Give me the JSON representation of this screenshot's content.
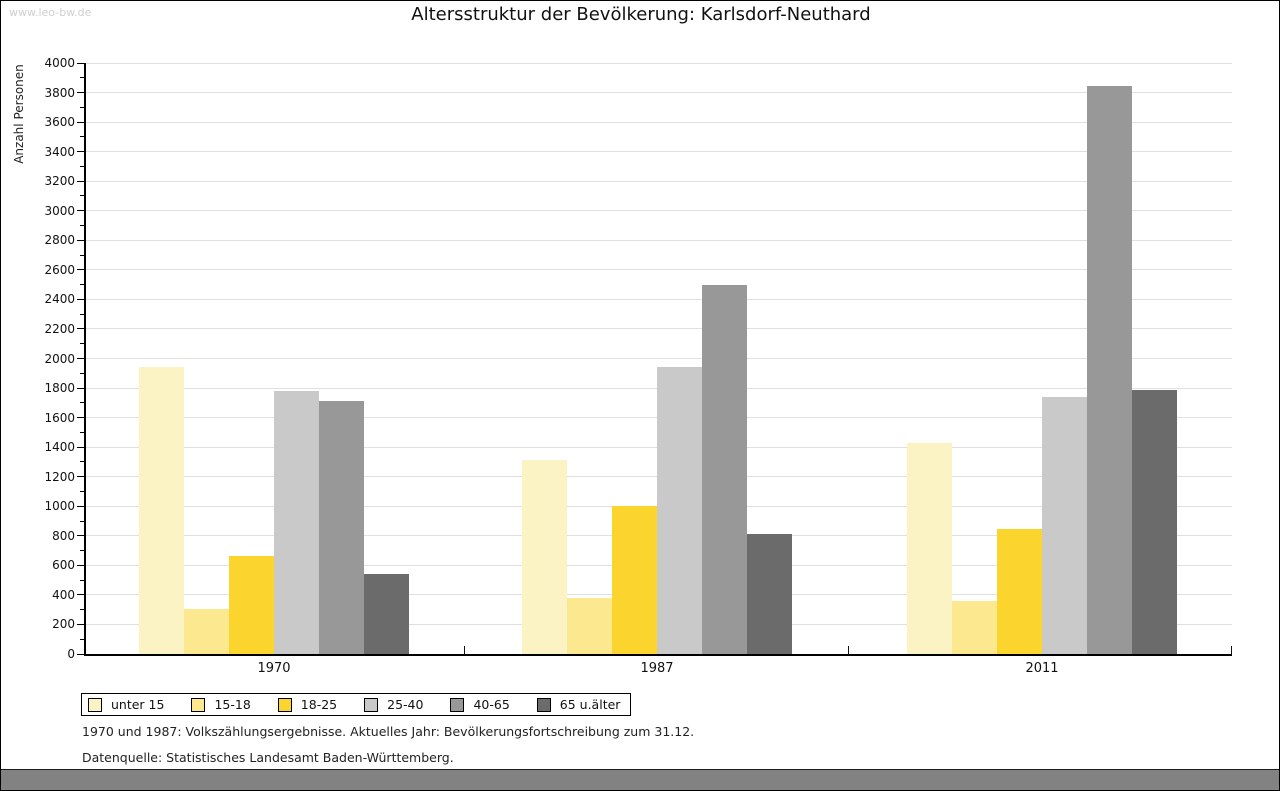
{
  "page": {
    "watermark": "www.leo-bw.de",
    "title": "Altersstruktur der Bevölkerung: Karlsdorf-Neuthard"
  },
  "chart_data": {
    "type": "bar",
    "title": "Altersstruktur der Bevölkerung: Karlsdorf-Neuthard",
    "ylabel": "Anzahl Personen",
    "xlabel": "",
    "ylim": [
      0,
      4000
    ],
    "ytick_step": 200,
    "grid": true,
    "legend_position": "bottom-left",
    "categories": [
      "1970",
      "1987",
      "2011"
    ],
    "series": [
      {
        "name": "unter 15",
        "color": "#FCF3C5",
        "values": [
          1945,
          1315,
          1430
        ]
      },
      {
        "name": "15-18",
        "color": "#FCE98F",
        "values": [
          305,
          380,
          360
        ]
      },
      {
        "name": "18-25",
        "color": "#FCD42E",
        "values": [
          665,
          1005,
          845
        ]
      },
      {
        "name": "25-40",
        "color": "#C9C9C9",
        "values": [
          1780,
          1940,
          1740
        ]
      },
      {
        "name": "40-65",
        "color": "#989898",
        "values": [
          1710,
          2500,
          3845
        ]
      },
      {
        "name": "65 u.älter",
        "color": "#6B6B6B",
        "values": [
          540,
          810,
          1785
        ]
      }
    ]
  },
  "footnotes": {
    "line1": "1970 und 1987: Volkszählungsergebnisse. Aktuelles Jahr: Bevölkerungsfortschreibung zum 31.12.",
    "line2": "Datenquelle: Statistisches Landesamt Baden-Württemberg."
  }
}
